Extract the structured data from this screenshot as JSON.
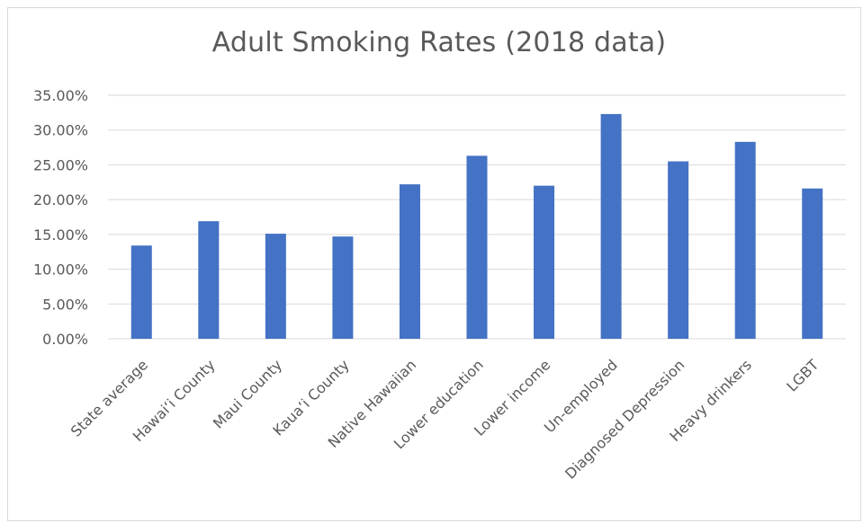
{
  "chart_data": {
    "type": "bar",
    "title": "Adult Smoking Rates (2018 data)",
    "xlabel": "",
    "ylabel": "",
    "ylim": [
      0,
      0.35
    ],
    "y_ticks": [
      0,
      0.05,
      0.1,
      0.15,
      0.2,
      0.25,
      0.3,
      0.35
    ],
    "y_tick_labels": [
      "0.00%",
      "5.00%",
      "10.00%",
      "15.00%",
      "20.00%",
      "25.00%",
      "30.00%",
      "35.00%"
    ],
    "grid": true,
    "legend": "none",
    "bar_color": "#4472c4",
    "categories": [
      "State average",
      "Hawai‘i County",
      "Maui County",
      "Kaua‘i County",
      "Native Hawaiian",
      "Lower education",
      "Lower income",
      "Un-employed",
      "Diagnosed Depression",
      "Heavy drinkers",
      "LGBT"
    ],
    "values": [
      0.134,
      0.169,
      0.151,
      0.147,
      0.222,
      0.263,
      0.22,
      0.323,
      0.255,
      0.283,
      0.216
    ]
  }
}
